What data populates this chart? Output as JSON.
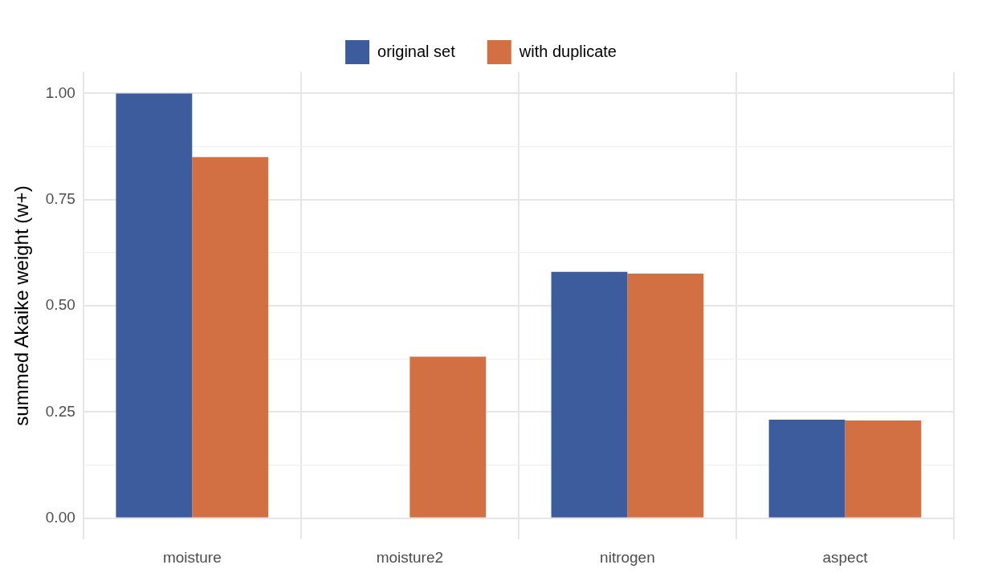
{
  "chart_data": {
    "type": "bar",
    "ylabel": "summed Akaike weight (w+)",
    "categories": [
      "moisture",
      "moisture2",
      "nitrogen",
      "aspect"
    ],
    "series": [
      {
        "name": "original set",
        "color": "#3c5c9e",
        "values": [
          1.0,
          null,
          0.58,
          0.232
        ]
      },
      {
        "name": "with duplicate",
        "color": "#d27043",
        "values": [
          0.85,
          0.38,
          0.576,
          0.23
        ]
      }
    ],
    "ylim": [
      -0.05,
      1.05
    ],
    "yticks": [
      {
        "value": 0,
        "label": "0.00"
      },
      {
        "value": 0.125,
        "label": null
      },
      {
        "value": 0.25,
        "label": "0.25"
      },
      {
        "value": 0.375,
        "label": null
      },
      {
        "value": 0.5,
        "label": "0.50"
      },
      {
        "value": 0.625,
        "label": null
      },
      {
        "value": 0.75,
        "label": "0.75"
      },
      {
        "value": 0.875,
        "label": null
      },
      {
        "value": 1,
        "label": "1.00"
      }
    ],
    "grid": true,
    "legend": "top"
  }
}
